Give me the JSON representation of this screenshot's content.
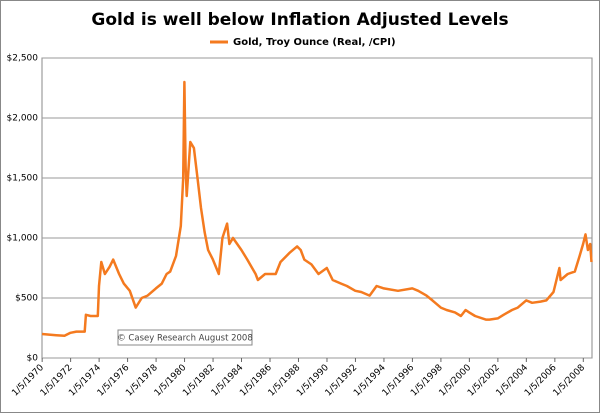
{
  "chart_data": {
    "type": "line",
    "title": "Gold is well below  Inflation Adjusted Levels",
    "annotation": "© Casey Research August 2008",
    "x": [
      "1970-01-01",
      "1971-01-01",
      "1971-08-01",
      "1972-01-01",
      "1972-06-01",
      "1973-01-01",
      "1973-02-01",
      "1973-06-01",
      "1973-12-01",
      "1974-01-01",
      "1974-03-01",
      "1974-06-01",
      "1974-10-01",
      "1975-01-01",
      "1975-06-01",
      "1975-10-01",
      "1976-03-01",
      "1976-08-01",
      "1977-01-01",
      "1977-06-01",
      "1978-01-01",
      "1978-06-01",
      "1978-10-01",
      "1979-01-01",
      "1979-06-01",
      "1979-10-01",
      "1979-12-01",
      "1980-01-01",
      "1980-02-01",
      "1980-03-01",
      "1980-06-01",
      "1980-09-01",
      "1980-12-01",
      "1981-03-01",
      "1981-06-01",
      "1981-09-01",
      "1982-01-01",
      "1982-06-01",
      "1982-09-01",
      "1983-01-01",
      "1983-03-01",
      "1983-06-01",
      "1984-01-01",
      "1984-06-01",
      "1985-01-01",
      "1985-03-01",
      "1985-09-01",
      "1986-01-01",
      "1986-06-01",
      "1986-10-01",
      "1987-06-01",
      "1987-12-01",
      "1988-03-01",
      "1988-06-01",
      "1988-12-01",
      "1989-06-01",
      "1990-01-01",
      "1990-06-01",
      "1991-01-01",
      "1991-06-01",
      "1992-01-01",
      "1992-06-01",
      "1993-01-01",
      "1993-07-01",
      "1994-01-01",
      "1995-01-01",
      "1996-01-01",
      "1996-06-01",
      "1997-01-01",
      "1997-06-01",
      "1998-01-01",
      "1998-06-01",
      "1999-01-01",
      "1999-06-01",
      "1999-10-01",
      "2000-01-01",
      "2000-06-01",
      "2001-03-01",
      "2001-06-01",
      "2002-01-01",
      "2002-06-01",
      "2003-01-01",
      "2003-06-01",
      "2004-01-01",
      "2004-06-01",
      "2005-01-01",
      "2005-06-01",
      "2005-12-01",
      "2006-05-01",
      "2006-06-01",
      "2006-12-01",
      "2007-06-01",
      "2007-10-01",
      "2008-01-01",
      "2008-03-01",
      "2008-05-01",
      "2008-07-01",
      "2008-08-01"
    ],
    "series": [
      {
        "name": "Gold, Troy Ounce (Real, /CPI)",
        "color": "#f47a1f",
        "values": [
          200,
          190,
          185,
          210,
          220,
          220,
          360,
          350,
          350,
          600,
          800,
          700,
          760,
          820,
          700,
          620,
          560,
          420,
          500,
          520,
          580,
          620,
          700,
          720,
          850,
          1100,
          1500,
          2300,
          1600,
          1350,
          1800,
          1750,
          1500,
          1250,
          1050,
          900,
          820,
          700,
          1000,
          1120,
          950,
          1000,
          900,
          820,
          700,
          650,
          700,
          700,
          700,
          800,
          880,
          930,
          900,
          820,
          780,
          700,
          750,
          650,
          620,
          600,
          560,
          550,
          520,
          600,
          580,
          560,
          580,
          560,
          520,
          480,
          420,
          400,
          380,
          350,
          400,
          380,
          350,
          320,
          320,
          330,
          360,
          400,
          420,
          480,
          460,
          470,
          480,
          550,
          750,
          650,
          700,
          720,
          850,
          950,
          1030,
          900,
          950,
          800
        ]
      }
    ],
    "xlim": [
      "1970-01-01",
      "2008-08-15"
    ],
    "xticks": [
      {
        "value": "1970-01-05",
        "label": "1/5/1970"
      },
      {
        "value": "1972-01-05",
        "label": "1/5/1972"
      },
      {
        "value": "1974-01-05",
        "label": "1/5/1974"
      },
      {
        "value": "1976-01-05",
        "label": "1/5/1976"
      },
      {
        "value": "1978-01-05",
        "label": "1/5/1978"
      },
      {
        "value": "1980-01-05",
        "label": "1/5/1980"
      },
      {
        "value": "1982-01-05",
        "label": "1/5/1982"
      },
      {
        "value": "1984-01-05",
        "label": "1/5/1984"
      },
      {
        "value": "1986-01-05",
        "label": "1/5/1986"
      },
      {
        "value": "1988-01-05",
        "label": "1/5/1988"
      },
      {
        "value": "1990-01-05",
        "label": "1/5/1990"
      },
      {
        "value": "1992-01-05",
        "label": "1/5/1992"
      },
      {
        "value": "1994-01-05",
        "label": "1/5/1994"
      },
      {
        "value": "1996-01-05",
        "label": "1/5/1996"
      },
      {
        "value": "1998-01-05",
        "label": "1/5/1998"
      },
      {
        "value": "2000-01-05",
        "label": "1/5/2000"
      },
      {
        "value": "2002-01-05",
        "label": "1/5/2002"
      },
      {
        "value": "2004-01-05",
        "label": "1/5/2004"
      },
      {
        "value": "2006-01-05",
        "label": "1/5/2006"
      },
      {
        "value": "2008-01-05",
        "label": "1/5/2008"
      }
    ],
    "ylim": [
      0,
      2500
    ],
    "yticks": [
      {
        "value": 0,
        "label": "$0"
      },
      {
        "value": 500,
        "label": "$500"
      },
      {
        "value": 1000,
        "label": "$1,000"
      },
      {
        "value": 1500,
        "label": "$1,500"
      },
      {
        "value": 2000,
        "label": "$2,000"
      },
      {
        "value": 2500,
        "label": "$2,500"
      }
    ],
    "grid": true,
    "legend": "top"
  }
}
